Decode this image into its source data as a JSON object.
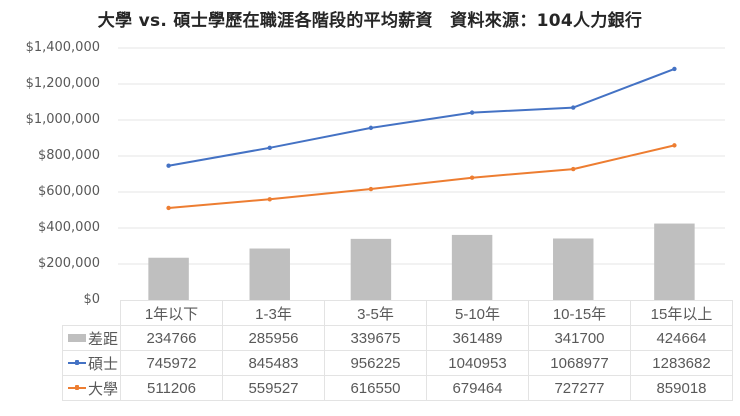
{
  "title": "大學 vs. 碩士學歷在職涯各階段的平均薪資　資料來源：104人力銀行",
  "colors": {
    "gap_bar": "#bfbfbf",
    "master_line": "#4472c4",
    "bachelor_line": "#ed7d31",
    "gridline": "#e6e6e6"
  },
  "y_axis": {
    "ticks": [
      "$1,400,000",
      "$1,200,000",
      "$1,000,000",
      "$800,000",
      "$600,000",
      "$400,000",
      "$200,000",
      "$0"
    ]
  },
  "table": {
    "headers": [
      "1年以下",
      "1-3年",
      "3-5年",
      "5-10年",
      "10-15年",
      "15年以上"
    ],
    "rows": [
      {
        "label": "差距",
        "values": [
          "234766",
          "285956",
          "339675",
          "361489",
          "341700",
          "424664"
        ]
      },
      {
        "label": "碩士",
        "values": [
          "745972",
          "845483",
          "956225",
          "1040953",
          "1068977",
          "1283682"
        ]
      },
      {
        "label": "大學",
        "values": [
          "511206",
          "559527",
          "616550",
          "679464",
          "727277",
          "859018"
        ]
      }
    ]
  },
  "chart_data": {
    "type": "bar+line",
    "title": "大學 vs. 碩士學歷在職涯各階段的平均薪資　資料來源：104人力銀行",
    "xlabel": "",
    "ylabel": "",
    "categories": [
      "1年以下",
      "1-3年",
      "3-5年",
      "5-10年",
      "10-15年",
      "15年以上"
    ],
    "series": [
      {
        "name": "差距",
        "type": "bar",
        "color": "#bfbfbf",
        "values": [
          234766,
          285956,
          339675,
          361489,
          341700,
          424664
        ]
      },
      {
        "name": "碩士",
        "type": "line",
        "color": "#4472c4",
        "values": [
          745972,
          845483,
          956225,
          1040953,
          1068977,
          1283682
        ]
      },
      {
        "name": "大學",
        "type": "line",
        "color": "#ed7d31",
        "values": [
          511206,
          559527,
          616550,
          679464,
          727277,
          859018
        ]
      }
    ],
    "ylim": [
      0,
      1400000
    ],
    "y_tick_step": 200000,
    "y_tick_format": "$#,##0",
    "grid": true,
    "legend_position": "data-table (bottom)"
  }
}
